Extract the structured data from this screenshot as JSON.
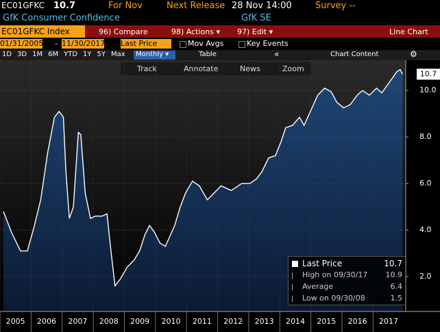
{
  "header": {
    "ticker": "EC01GFKC",
    "price": "10.7",
    "period": "For Nov",
    "release_label": "Next Release",
    "release_time": "28 Nov 14:00",
    "survey": "Survey --"
  },
  "subtitle": {
    "name": "GfK Consumer Confidence",
    "source": "GfK SE"
  },
  "toolbar": {
    "security": "EC01GFKC Index",
    "compare": "96) Compare",
    "actions": "98) Actions ▾",
    "edit": "97) Edit ▾",
    "chart_type": "Line Chart"
  },
  "controls": {
    "start": "01/31/2005",
    "end": "11/30/2017",
    "field": "Last Price",
    "mov_avgs": "Mov Avgs",
    "key_events": "Key Events"
  },
  "periods": [
    "1D",
    "3D",
    "1M",
    "6M",
    "YTD",
    "1Y",
    "5Y",
    "Max"
  ],
  "frequency": "Monthly ▾",
  "table": "Table",
  "collapse": "«",
  "chart_content": "Chart Content",
  "chart_tools": [
    "Track",
    "Annotate",
    "News",
    "Zoom"
  ],
  "chart_data": {
    "type": "area",
    "color": "#ffffff",
    "fill": "#1a3a64",
    "x": [
      2005.11,
      2005.37,
      2005.66,
      2005.88,
      2006.09,
      2006.31,
      2006.53,
      2006.75,
      2006.9,
      2007.04,
      2007.12,
      2007.23,
      2007.36,
      2007.52,
      2007.6,
      2007.74,
      2007.91,
      2008.06,
      2008.28,
      2008.44,
      2008.57,
      2008.7,
      2008.87,
      2009.09,
      2009.31,
      2009.49,
      2009.66,
      2009.81,
      2009.97,
      2010.14,
      2010.32,
      2010.47,
      2010.62,
      2010.8,
      2010.97,
      2011.19,
      2011.41,
      2011.67,
      2011.89,
      2012.11,
      2012.44,
      2012.77,
      2013.03,
      2013.25,
      2013.42,
      2013.64,
      2013.86,
      2014.04,
      2014.19,
      2014.41,
      2014.63,
      2014.78,
      2015.0,
      2015.22,
      2015.44,
      2015.65,
      2015.83,
      2016.05,
      2016.27,
      2016.49,
      2016.66,
      2016.88,
      2017.11,
      2017.28,
      2017.55,
      2017.76,
      2017.87,
      2017.95
    ],
    "values": [
      4.8,
      3.9,
      3.1,
      3.1,
      4.1,
      5.3,
      7.3,
      8.85,
      9.1,
      8.85,
      6.5,
      4.5,
      5.0,
      8.2,
      8.1,
      5.6,
      4.5,
      4.6,
      4.6,
      4.7,
      3.1,
      1.6,
      1.9,
      2.4,
      2.7,
      3.1,
      3.8,
      4.2,
      3.9,
      3.45,
      3.3,
      3.75,
      4.2,
      5.0,
      5.6,
      6.1,
      5.9,
      5.3,
      5.6,
      5.9,
      5.7,
      6.0,
      6.0,
      6.2,
      6.5,
      7.1,
      7.2,
      7.8,
      8.4,
      8.5,
      8.85,
      8.5,
      9.15,
      9.8,
      10.1,
      9.95,
      9.5,
      9.25,
      9.4,
      9.8,
      10.0,
      9.8,
      10.1,
      9.9,
      10.4,
      10.8,
      10.9,
      10.7
    ],
    "xlim": [
      2005,
      2018.05
    ],
    "ylim": [
      0.5,
      11.3
    ],
    "xticks": [
      2005,
      2006,
      2007,
      2008,
      2009,
      2010,
      2011,
      2012,
      2013,
      2014,
      2015,
      2016,
      2017
    ],
    "yticks": [
      {
        "value": 2,
        "label": "2.0"
      },
      {
        "value": 4,
        "label": "4.0"
      },
      {
        "value": 6,
        "label": "6.0"
      },
      {
        "value": 8,
        "label": "8.0"
      },
      {
        "value": 10,
        "label": "10.0"
      }
    ],
    "grid": true,
    "last_value": 10.7
  },
  "legend": [
    {
      "label": "Last Price",
      "value": 10.7
    },
    {
      "label": "High on 09/30/17",
      "value": 10.9
    },
    {
      "label": "Average",
      "value": 6.4
    },
    {
      "label": "Low on 09/30/08",
      "value": 1.5
    }
  ]
}
